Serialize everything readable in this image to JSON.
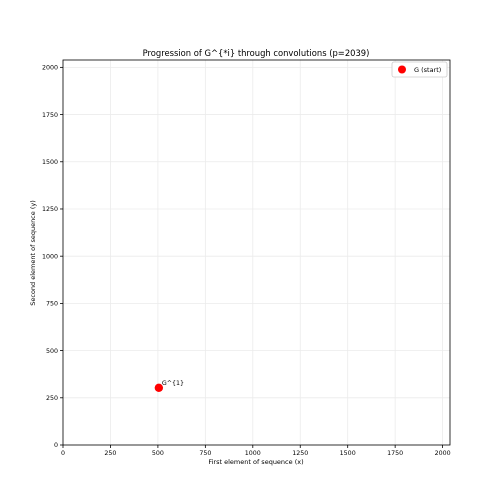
{
  "chart_data": {
    "type": "scatter",
    "title": "Progression of G^{*i} through convolutions (p=2039)",
    "xlabel": "First element of sequence (x)",
    "ylabel": "Second element of sequence (y)",
    "xlim": [
      0,
      2039
    ],
    "ylim": [
      0,
      2039
    ],
    "xticks": [
      0,
      250,
      500,
      750,
      1000,
      1250,
      1500,
      1750,
      2000
    ],
    "yticks": [
      0,
      250,
      500,
      750,
      1000,
      1250,
      1500,
      1750,
      2000
    ],
    "grid": true,
    "legend_position": "top-right",
    "series": [
      {
        "name": "G (start)",
        "color": "#ff0000",
        "points": [
          {
            "x": 505,
            "y": 303,
            "label": "G^{1}"
          }
        ]
      }
    ]
  }
}
